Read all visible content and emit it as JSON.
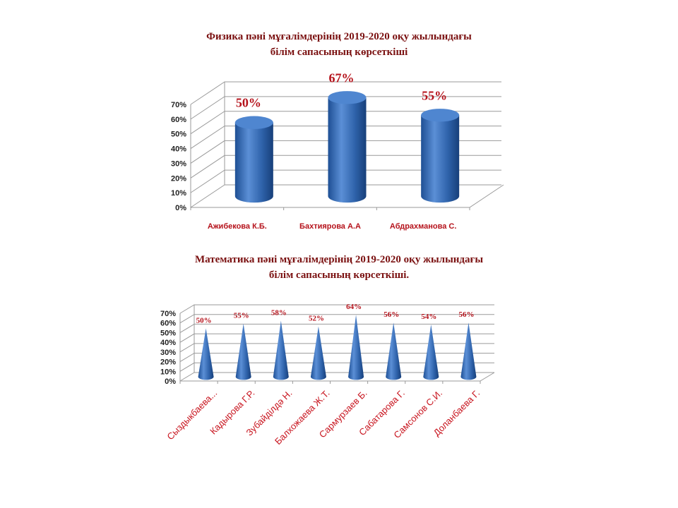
{
  "chart_data": [
    {
      "type": "bar",
      "shape": "3d-cylinder",
      "title": "Физика пәні мұғалімдерінің  2019-2020 оқу жылындағы білім сапасының көрсеткіші",
      "title_lines": [
        "Физика пәні  мұғалімдерінің  2019-2020 оқу  жылындағы",
        "білім  сапасының  көрсеткіші"
      ],
      "categories": [
        "Ажибекова К.Б.",
        "Бахтиярова А.А",
        "Абдрахманова С."
      ],
      "values": [
        50,
        67,
        55
      ],
      "data_labels": [
        "50%",
        "67%",
        "55%"
      ],
      "yticks": [
        "0%",
        "10%",
        "20%",
        "30%",
        "40%",
        "50%",
        "60%",
        "70%"
      ],
      "ylim": [
        0,
        70
      ],
      "grid": true,
      "bar_color": "#3a6fb5",
      "label_color": "#b5121b"
    },
    {
      "type": "bar",
      "shape": "3d-cone",
      "title": "Математика пәні мұғалімдерінің 2019-2020 оқу жылындағы білім сапасының көрсеткіші.",
      "title_lines": [
        "Математика  пәні  мұғалімдерінің   2019-2020  оқу  жылындағы",
        "білім  сапасының  көрсеткіші."
      ],
      "categories": [
        "Сыздыкбаева...",
        "Кадырова Г.Р.",
        "Зубайділдә Н.",
        "Балхожаева Ж.Т.",
        "Сармурзаев Б.",
        "Сабатарова Г.",
        "Самсонов С.И.",
        "Доланбаева Г."
      ],
      "values": [
        50,
        55,
        58,
        52,
        64,
        56,
        54,
        56
      ],
      "data_labels": [
        "50%",
        "55%",
        "58%",
        "52%",
        "64%",
        "56%",
        "54%",
        "56%"
      ],
      "yticks": [
        "0%",
        "10%",
        "20%",
        "30%",
        "40%",
        "50%",
        "60%",
        "70%"
      ],
      "ylim": [
        0,
        70
      ],
      "grid": true,
      "bar_color": "#3a6fb5",
      "label_color": "#c8141e"
    }
  ]
}
